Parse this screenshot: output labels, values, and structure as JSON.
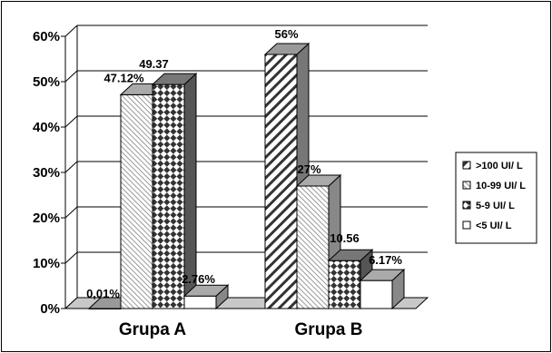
{
  "chart_data": {
    "type": "bar",
    "categories": [
      "Grupa A",
      "Grupa B"
    ],
    "series": [
      {
        "name": ">100 UI/ L",
        "values": [
          0.01,
          56
        ],
        "labels": [
          "0,01%",
          "56%"
        ]
      },
      {
        "name": "10-99 UI/ L",
        "values": [
          47.12,
          27
        ],
        "labels": [
          "47.12%",
          "27%"
        ]
      },
      {
        "name": "5-9 UI/ L",
        "values": [
          49.37,
          10.56
        ],
        "labels": [
          "49.37",
          "10.56"
        ]
      },
      {
        "name": "<5 UI/ L",
        "values": [
          2.76,
          6.17
        ],
        "labels": [
          "2.76%",
          "6.17%"
        ]
      }
    ],
    "yticks": [
      "0%",
      "10%",
      "20%",
      "30%",
      "40%",
      "50%",
      "60%"
    ],
    "ylim": [
      0,
      60
    ],
    "grid": true,
    "legend": "right",
    "three_d": true
  }
}
